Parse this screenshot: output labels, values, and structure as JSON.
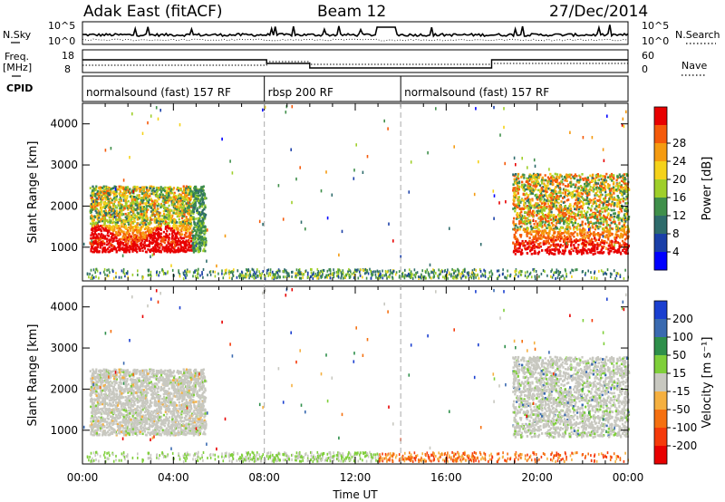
{
  "header": {
    "title": "Adak East (fitACF)",
    "beam": "Beam 12",
    "date": "27/Dec/2014"
  },
  "strip_labels": {
    "nsky": "N.Sky",
    "freq_line1": "Freq.",
    "freq_line2": "[MHz]",
    "cpid": "CPID",
    "nsearch": "N.Search",
    "nave": "Nave"
  },
  "strip_ticks": {
    "nsky_top": "10^5",
    "nsky_bottom": "10^0",
    "freq_top": "18",
    "freq_bottom": "8",
    "nave_top": "60",
    "nave_bottom": "0"
  },
  "cpid_segments": [
    {
      "label": "normalsound (fast) 157 RF",
      "start_h": 0,
      "end_h": 8
    },
    {
      "label": "rbsp 200 RF",
      "start_h": 8,
      "end_h": 14
    },
    {
      "label": "normalsound (fast) 157 RF",
      "start_h": 14,
      "end_h": 24
    }
  ],
  "chart_data": [
    {
      "type": "heatmap",
      "name": "power-panel",
      "xlabel": "",
      "ylabel": "Slant Range [km]",
      "xlim": [
        0,
        24
      ],
      "ylim": [
        180,
        4500
      ],
      "yticks": [
        "1000",
        "2000",
        "3000",
        "4000"
      ],
      "colorbar": {
        "label": "Power [dB]",
        "ticks": [
          "4",
          "8",
          "12",
          "16",
          "20",
          "24",
          "28"
        ],
        "colors": [
          "#0000ff",
          "#1a3fa8",
          "#2e6b6b",
          "#3f8f4a",
          "#9fcf2a",
          "#f5d21a",
          "#f59b10",
          "#f55a0a",
          "#e80000"
        ]
      },
      "regions": [
        {
          "t_start": 0.3,
          "t_end": 5.5,
          "r_start": 900,
          "r_end": 2500,
          "level": "high"
        },
        {
          "t_start": 19.0,
          "t_end": 24,
          "r_start": 800,
          "r_end": 2800,
          "level": "high"
        },
        {
          "t_start": 0,
          "t_end": 24,
          "r_start": 180,
          "r_end": 450,
          "level": "low"
        }
      ]
    },
    {
      "type": "heatmap",
      "name": "velocity-panel",
      "xlabel": "Time UT",
      "ylabel": "Slant Range [km]",
      "xlim": [
        0,
        24
      ],
      "ylim": [
        180,
        4500
      ],
      "xticks": [
        "00:00",
        "04:00",
        "08:00",
        "12:00",
        "16:00",
        "20:00",
        "00:00"
      ],
      "yticks": [
        "1000",
        "2000",
        "3000",
        "4000"
      ],
      "colorbar": {
        "label": "Velocity [m s⁻¹]",
        "ticks": [
          "200",
          "100",
          "50",
          "15",
          "-15",
          "-50",
          "-100",
          "-200"
        ],
        "colors": [
          "#1a3fd0",
          "#3a6ab0",
          "#2e8f4a",
          "#7fcf3a",
          "#c8c8c0",
          "#f5b040",
          "#f57010",
          "#f53a0a",
          "#e80000"
        ]
      }
    }
  ],
  "dashed_markers_h": [
    8,
    14
  ]
}
